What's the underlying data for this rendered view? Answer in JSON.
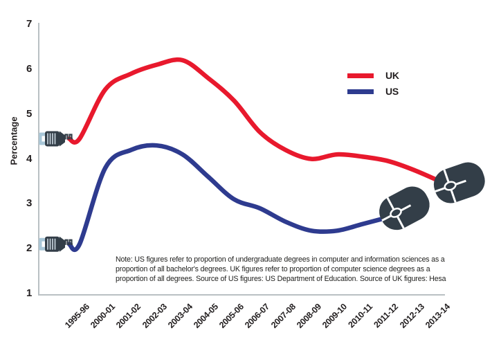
{
  "chart_data": {
    "type": "line",
    "ylabel": "Percentage",
    "ylim": [
      1,
      7
    ],
    "yticks": [
      7,
      6,
      5,
      4,
      3,
      2,
      1
    ],
    "grid": false,
    "legend_position": "top-right",
    "categories": [
      "1995-96",
      "2000-01",
      "2001-02",
      "2002-03",
      "2003-04",
      "2004-05",
      "2005-06",
      "2006-07",
      "2007-08",
      "2008-09",
      "2009-10",
      "2010-11",
      "2011-12",
      "2012-13",
      "2013-14"
    ],
    "series": [
      {
        "name": "UK",
        "color": "#e8192d",
        "values": [
          4.45,
          5.55,
          5.9,
          6.1,
          6.2,
          5.8,
          5.3,
          4.6,
          4.2,
          4.0,
          4.1,
          4.05,
          3.95,
          3.75,
          3.5
        ]
      },
      {
        "name": "US",
        "color": "#2e3b8f",
        "values": [
          2.1,
          3.8,
          4.2,
          4.3,
          4.1,
          3.6,
          3.1,
          2.9,
          2.6,
          2.4,
          2.4,
          2.55,
          2.7,
          null,
          null
        ]
      }
    ],
    "note": "Note: US figures refer to proportion of undergraduate degrees in computer and information sciences as a proportion of all bachelor's degrees. UK figures refer to proportion of computer science degrees as a proportion of all degrees. Source of US figures: US Department of Education. Source of UK figures: Hesa"
  },
  "icons": {
    "plug": "plug-icon",
    "mouse": "mouse-icon"
  },
  "colors": {
    "axis": "#b9c0c3",
    "device": "#333e48",
    "plug_tip": "#a9c7d8",
    "text": "#231f20"
  }
}
